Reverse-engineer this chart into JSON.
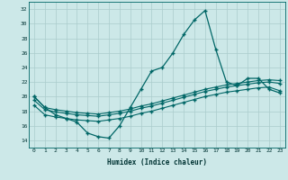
{
  "title": "",
  "xlabel": "Humidex (Indice chaleur)",
  "background_color": "#cce8e8",
  "grid_color": "#aacccc",
  "line_color": "#006666",
  "xlim": [
    -0.5,
    23.5
  ],
  "ylim": [
    13,
    33
  ],
  "xticks": [
    0,
    1,
    2,
    3,
    4,
    5,
    6,
    7,
    8,
    9,
    10,
    11,
    12,
    13,
    14,
    15,
    16,
    17,
    18,
    19,
    20,
    21,
    22,
    23
  ],
  "yticks": [
    14,
    16,
    18,
    20,
    22,
    24,
    26,
    28,
    30,
    32
  ],
  "line1_x": [
    0,
    1,
    2,
    3,
    4,
    5,
    6,
    7,
    8,
    9,
    10,
    11,
    12,
    13,
    14,
    15,
    16,
    17,
    18,
    19,
    20,
    21,
    22,
    23
  ],
  "line1_y": [
    20.0,
    18.5,
    17.5,
    17.0,
    16.5,
    15.0,
    14.5,
    14.3,
    16.0,
    18.5,
    21.0,
    23.5,
    24.0,
    26.0,
    28.5,
    30.5,
    31.8,
    26.5,
    22.0,
    21.5,
    22.5,
    22.5,
    21.0,
    20.5
  ],
  "line2_x": [
    0,
    1,
    2,
    3,
    4,
    5,
    6,
    7,
    8,
    9,
    10,
    11,
    12,
    13,
    14,
    15,
    16,
    17,
    18,
    19,
    20,
    21,
    22,
    23
  ],
  "line2_y": [
    20.0,
    18.5,
    18.2,
    18.0,
    17.8,
    17.7,
    17.6,
    17.8,
    18.0,
    18.3,
    18.7,
    19.0,
    19.4,
    19.8,
    20.2,
    20.6,
    21.0,
    21.3,
    21.6,
    21.8,
    22.0,
    22.2,
    22.3,
    22.2
  ],
  "line3_x": [
    0,
    1,
    2,
    3,
    4,
    5,
    6,
    7,
    8,
    9,
    10,
    11,
    12,
    13,
    14,
    15,
    16,
    17,
    18,
    19,
    20,
    21,
    22,
    23
  ],
  "line3_y": [
    19.5,
    18.2,
    17.9,
    17.7,
    17.5,
    17.4,
    17.3,
    17.5,
    17.7,
    18.0,
    18.4,
    18.7,
    19.1,
    19.5,
    19.9,
    20.3,
    20.7,
    21.0,
    21.3,
    21.5,
    21.7,
    21.9,
    22.0,
    21.8
  ],
  "line4_x": [
    0,
    1,
    2,
    3,
    4,
    5,
    6,
    7,
    8,
    9,
    10,
    11,
    12,
    13,
    14,
    15,
    16,
    17,
    18,
    19,
    20,
    21,
    22,
    23
  ],
  "line4_y": [
    18.8,
    17.5,
    17.2,
    17.0,
    16.8,
    16.7,
    16.6,
    16.8,
    17.0,
    17.3,
    17.7,
    18.0,
    18.4,
    18.8,
    19.2,
    19.6,
    20.0,
    20.3,
    20.6,
    20.8,
    21.0,
    21.2,
    21.3,
    20.8
  ]
}
